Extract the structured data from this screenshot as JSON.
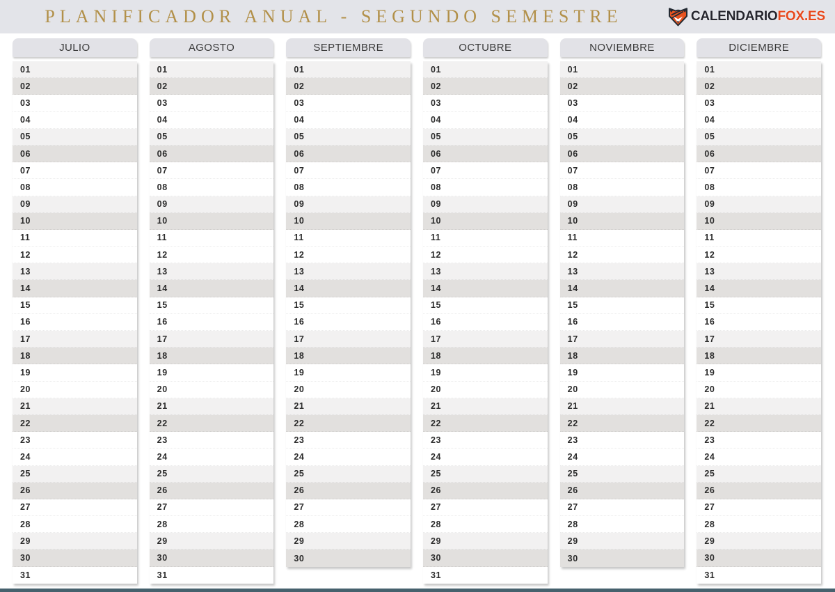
{
  "header": {
    "title": "PLANIFICADOR ANUAL - SEGUNDO SEMESTRE",
    "title_color": "#b29049",
    "background": "#e3e4e9",
    "logo": {
      "icon": "fox-icon",
      "text_dark": "CALENDARIO",
      "text_accent": "FOX.ES",
      "accent_color": "#e8491d"
    }
  },
  "calendar": {
    "months": [
      {
        "name": "JULIO",
        "days": 31
      },
      {
        "name": "AGOSTO",
        "days": 31
      },
      {
        "name": "SEPTIEMBRE",
        "days": 30
      },
      {
        "name": "OCTUBRE",
        "days": 31
      },
      {
        "name": "NOVIEMBRE",
        "days": 30
      },
      {
        "name": "DICIEMBRE",
        "days": 31
      }
    ],
    "day_labels": [
      "01",
      "02",
      "03",
      "04",
      "05",
      "06",
      "07",
      "08",
      "09",
      "10",
      "11",
      "12",
      "13",
      "14",
      "15",
      "16",
      "17",
      "18",
      "19",
      "20",
      "21",
      "22",
      "23",
      "24",
      "25",
      "26",
      "27",
      "28",
      "29",
      "30",
      "31"
    ],
    "row_shading": {
      "cycle": [
        "light",
        "dark",
        "none",
        "none"
      ],
      "light": "#f2f1f1",
      "dark": "#e2e0de",
      "none": "#ffffff"
    }
  },
  "footer": {
    "bar_color": "#46616d"
  }
}
